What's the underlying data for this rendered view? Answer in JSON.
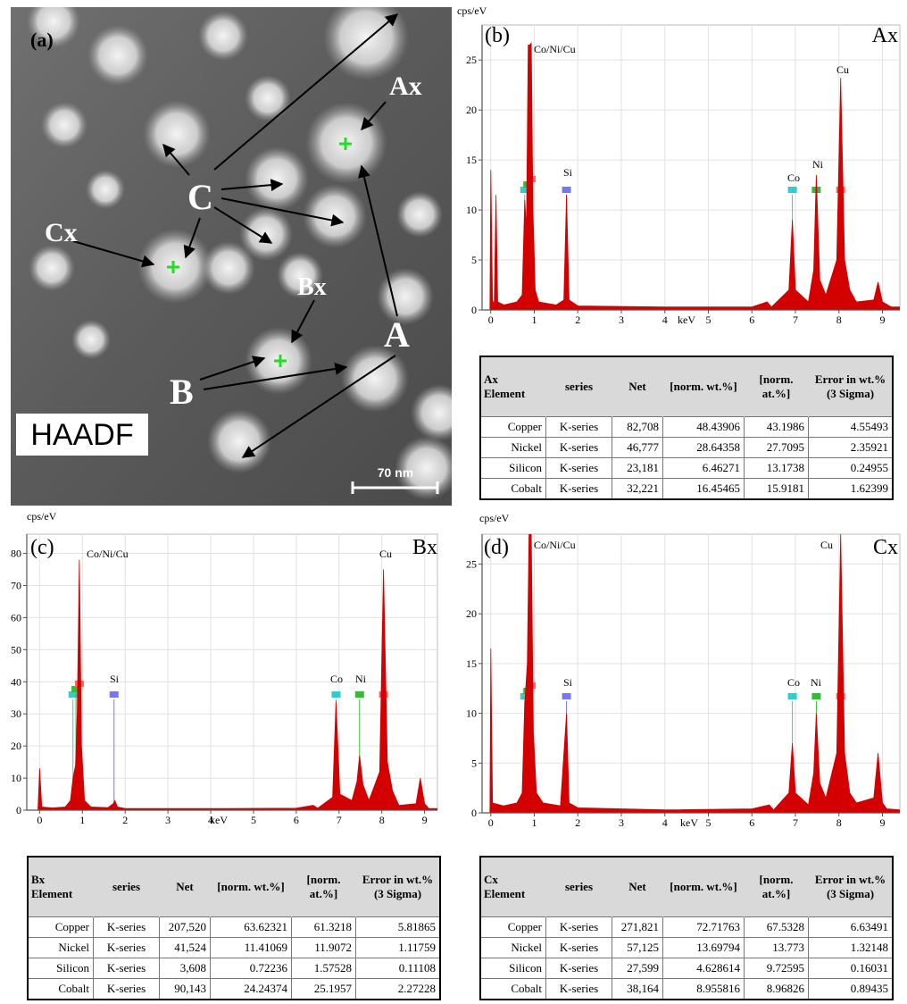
{
  "image": {
    "panel_label": "(a)",
    "labels": {
      "ax": "Ax",
      "c": "C",
      "cx": "Cx",
      "bx": "Bx",
      "b": "B",
      "a": "A"
    },
    "badge": "HAADF",
    "scale_bar": "70 nm"
  },
  "chart_data": [
    {
      "type": "area",
      "panel_label": "(b)",
      "corner_label": "Ax",
      "y_unit": "cps/eV",
      "x_label": "keV",
      "peak_labels": [
        "Co/Ni/Cu",
        "Si",
        "Co",
        "Ni",
        "Cu"
      ],
      "color": "#d40000",
      "grid": true,
      "xlim": [
        -0.2,
        9.4
      ],
      "ylim": [
        0,
        28.5
      ],
      "xticks": [
        0,
        1,
        2,
        3,
        4,
        5,
        6,
        7,
        8,
        9
      ],
      "yticks": [
        0,
        5,
        10,
        15,
        20,
        25
      ],
      "markers": [
        {
          "x": 0.78,
          "color": "#33cccc"
        },
        {
          "x": 0.85,
          "color": "#33bb33"
        },
        {
          "x": 0.93,
          "color": "#ff6666"
        },
        {
          "x": 1.74,
          "color": "#7777ee"
        },
        {
          "x": 6.93,
          "color": "#33cccc"
        },
        {
          "x": 7.48,
          "color": "#33bb33"
        },
        {
          "x": 8.04,
          "color": "#ff6666"
        }
      ],
      "x": [
        -0.2,
        -0.02,
        0.0,
        0.04,
        0.08,
        0.12,
        0.16,
        0.3,
        0.6,
        0.72,
        0.78,
        0.82,
        0.86,
        0.9,
        0.93,
        0.97,
        1.02,
        1.1,
        1.5,
        1.68,
        1.74,
        1.8,
        2.0,
        4,
        6,
        6.35,
        6.45,
        6.85,
        6.93,
        7.0,
        7.3,
        7.42,
        7.48,
        7.56,
        7.7,
        7.95,
        8.04,
        8.13,
        8.25,
        8.4,
        8.8,
        8.9,
        9.0,
        9.2,
        9.4
      ],
      "values": [
        0,
        0,
        14,
        1,
        0.5,
        11.5,
        0.8,
        0.5,
        0.8,
        1.5,
        11,
        8,
        26.5,
        26.5,
        26.7,
        10,
        2,
        0.8,
        0.5,
        1,
        11.5,
        1,
        0.4,
        0.3,
        0.3,
        0.8,
        0.3,
        2,
        9,
        2,
        0.8,
        4,
        13.5,
        3,
        1.5,
        5,
        23.2,
        5,
        2,
        0.8,
        1,
        2.8,
        0.8,
        0.3,
        0.3
      ]
    },
    {
      "type": "area",
      "panel_label": "(c)",
      "corner_label": "Bx",
      "y_unit": "cps/eV",
      "x_label": "keV",
      "peak_labels": [
        "Co/Ni/Cu",
        "Si",
        "Co",
        "Ni",
        "Cu"
      ],
      "color": "#d40000",
      "grid": true,
      "xlim": [
        -0.3,
        9.3
      ],
      "ylim": [
        0,
        86
      ],
      "xticks": [
        0,
        1,
        2,
        3,
        4,
        5,
        6,
        7,
        8,
        9
      ],
      "yticks": [
        0,
        10,
        20,
        30,
        40,
        50,
        60,
        70,
        80
      ],
      "markers": [
        {
          "x": 0.78,
          "color": "#33cccc"
        },
        {
          "x": 0.85,
          "color": "#33bb33"
        },
        {
          "x": 0.93,
          "color": "#ff6666"
        },
        {
          "x": 1.74,
          "color": "#7777ee"
        },
        {
          "x": 6.93,
          "color": "#33cccc"
        },
        {
          "x": 7.48,
          "color": "#33bb33"
        },
        {
          "x": 8.04,
          "color": "#ff6666"
        }
      ],
      "x": [
        -0.3,
        -0.04,
        0.0,
        0.05,
        0.3,
        0.6,
        0.72,
        0.78,
        0.84,
        0.88,
        0.93,
        0.98,
        1.05,
        1.2,
        1.6,
        1.72,
        1.76,
        1.82,
        2.0,
        4,
        6,
        6.4,
        6.5,
        6.85,
        6.93,
        7.02,
        7.3,
        7.42,
        7.48,
        7.56,
        7.7,
        7.95,
        8.04,
        8.13,
        8.25,
        8.4,
        8.8,
        8.9,
        9.0,
        9.1,
        9.3
      ],
      "values": [
        0,
        0,
        13,
        1,
        0.7,
        1,
        3,
        10,
        14,
        30,
        78,
        20,
        3,
        1,
        0.8,
        2,
        3,
        1,
        0.5,
        0.5,
        0.6,
        1.5,
        0.6,
        4,
        34,
        5,
        3,
        9,
        17,
        8,
        3,
        12,
        75,
        15,
        6,
        1.5,
        2,
        10,
        2,
        0.5,
        0.5
      ]
    },
    {
      "type": "area",
      "panel_label": "(d)",
      "corner_label": "Cx",
      "y_unit": "cps/eV",
      "x_label": "keV",
      "peak_labels": [
        "Co/Ni/Cu",
        "Si",
        "Co",
        "Ni",
        "Cu"
      ],
      "color": "#d40000",
      "grid": true,
      "xlim": [
        -0.2,
        9.4
      ],
      "ylim": [
        0,
        28
      ],
      "xticks": [
        0,
        1,
        2,
        3,
        4,
        5,
        6,
        7,
        8,
        9
      ],
      "yticks": [
        0,
        5,
        10,
        15,
        20,
        25
      ],
      "markers": [
        {
          "x": 0.78,
          "color": "#33cccc"
        },
        {
          "x": 0.85,
          "color": "#33bb33"
        },
        {
          "x": 0.93,
          "color": "#ff6666"
        },
        {
          "x": 1.74,
          "color": "#7777ee"
        },
        {
          "x": 6.93,
          "color": "#33cccc"
        },
        {
          "x": 7.48,
          "color": "#33bb33"
        },
        {
          "x": 8.04,
          "color": "#ff6666"
        }
      ],
      "x": [
        -0.2,
        -0.02,
        0.0,
        0.04,
        0.3,
        0.6,
        0.72,
        0.78,
        0.84,
        0.88,
        0.93,
        0.98,
        1.05,
        1.2,
        1.6,
        1.74,
        1.8,
        2.0,
        4,
        6,
        6.4,
        6.5,
        6.85,
        6.93,
        7.0,
        7.3,
        7.42,
        7.48,
        7.56,
        7.7,
        7.95,
        8.04,
        8.13,
        8.25,
        8.4,
        8.8,
        8.9,
        9.0,
        9.1,
        9.4
      ],
      "values": [
        0,
        0,
        16.5,
        1,
        0.7,
        1,
        2,
        11,
        15,
        28,
        28,
        8,
        2,
        1,
        0.7,
        10,
        1,
        0.5,
        0.3,
        0.4,
        0.8,
        0.3,
        2,
        7,
        2,
        0.8,
        4,
        10,
        3,
        1.5,
        6,
        28,
        6,
        2,
        1,
        1.5,
        6,
        1,
        0.4,
        0.3
      ]
    }
  ],
  "tables": [
    {
      "name": "Ax",
      "columns": [
        "Element",
        "series",
        "Net",
        "[norm. wt.%]",
        "[norm. at.%]",
        "Error in wt.%(3 Sigma)"
      ],
      "rows": [
        [
          "Copper",
          "K-series",
          "82,708",
          "48.43906",
          "43.1986",
          "4.55493"
        ],
        [
          "Nickel",
          "K-series",
          "46,777",
          "28.64358",
          "27.7095",
          "2.35921"
        ],
        [
          "Silicon",
          "K-series",
          "23,181",
          "6.46271",
          "13.1738",
          "0.24955"
        ],
        [
          "Cobalt",
          "K-series",
          "32,221",
          "16.45465",
          "15.9181",
          "1.62399"
        ]
      ]
    },
    {
      "name": "Bx",
      "columns": [
        "Element",
        "series",
        "Net",
        "[norm. wt.%]",
        "[norm. at.%]",
        "Error in wt.%(3 Sigma)"
      ],
      "rows": [
        [
          "Copper",
          "K-series",
          "207,520",
          "63.62321",
          "61.3218",
          "5.81865"
        ],
        [
          "Nickel",
          "K-series",
          "41,524",
          "11.41069",
          "11.9072",
          "1.11759"
        ],
        [
          "Silicon",
          "K-series",
          "3,608",
          "0.72236",
          "1.57528",
          "0.11108"
        ],
        [
          "Cobalt",
          "K-series",
          "90,143",
          "24.24374",
          "25.1957",
          "2.27228"
        ]
      ]
    },
    {
      "name": "Cx",
      "columns": [
        "Element",
        "series",
        "Net",
        "[norm. wt.%]",
        "[norm. at.%]",
        "Error in wt.%(3 Sigma)"
      ],
      "rows": [
        [
          "Copper",
          "K-series",
          "271,821",
          "72.71763",
          "67.5328",
          "6.63491"
        ],
        [
          "Nickel",
          "K-series",
          "57,125",
          "13.69794",
          "13.773",
          "1.32148"
        ],
        [
          "Silicon",
          "K-series",
          "27,599",
          "4.628614",
          "9.72595",
          "0.16031"
        ],
        [
          "Cobalt",
          "K-series",
          "38,164",
          "8.955816",
          "8.96826",
          "0.89435"
        ]
      ]
    }
  ]
}
